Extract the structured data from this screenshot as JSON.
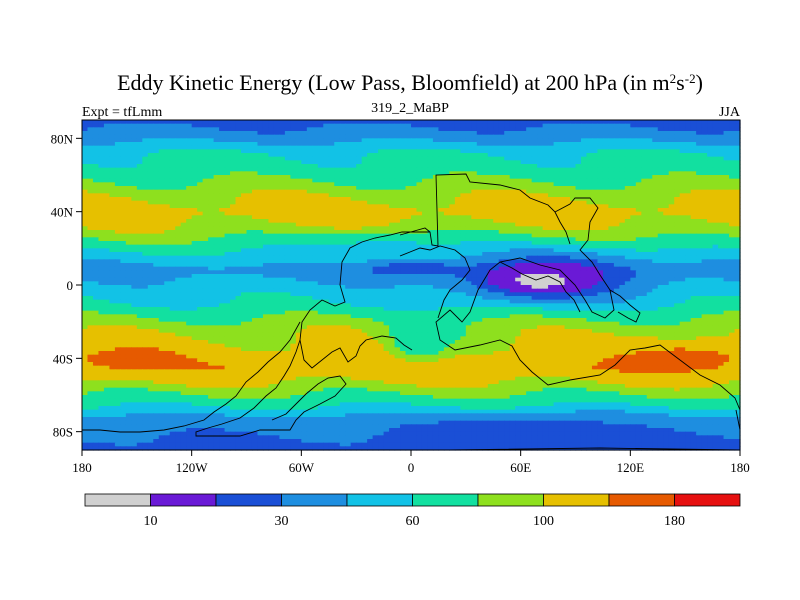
{
  "chart_data": {
    "type": "heatmap",
    "title_main": "Eddy Kinetic Energy (Low Pass, Bloomfield) at 200 hPa (in m",
    "title_sup1": "2",
    "title_mid": "s",
    "title_sup2": "-2",
    "title_end": ")",
    "left_subtitle": "Expt = tfLmm",
    "center_subtitle": "319_2_MaBP",
    "right_subtitle": "JJA",
    "x_ticks": [
      "180",
      "120W",
      "60W",
      "0",
      "60E",
      "120E",
      "180"
    ],
    "y_ticks": [
      "80N",
      "40N",
      "0",
      "40S",
      "80S"
    ],
    "xlim": [
      -180,
      180
    ],
    "ylim": [
      -90,
      90
    ],
    "colorbar_labels": [
      "10",
      "30",
      "60",
      "100",
      "180"
    ],
    "levels": [
      5,
      10,
      20,
      30,
      45,
      60,
      80,
      100,
      140,
      180
    ],
    "colors": [
      "#d0d0d0",
      "#6a1ad6",
      "#1a4fd6",
      "#1e8ee0",
      "#12c2e6",
      "#12e0a0",
      "#8ee01e",
      "#e6c000",
      "#e65a00",
      "#e61010"
    ],
    "band_profile": [
      {
        "lat": 90,
        "value": 25
      },
      {
        "lat": 82,
        "value": 35
      },
      {
        "lat": 72,
        "value": 60
      },
      {
        "lat": 62,
        "value": 70
      },
      {
        "lat": 52,
        "value": 90
      },
      {
        "lat": 40,
        "value": 115
      },
      {
        "lat": 28,
        "value": 90
      },
      {
        "lat": 18,
        "value": 60
      },
      {
        "lat": 8,
        "value": 38
      },
      {
        "lat": 0,
        "value": 50
      },
      {
        "lat": -10,
        "value": 60
      },
      {
        "lat": -22,
        "value": 90
      },
      {
        "lat": -35,
        "value": 110
      },
      {
        "lat": -45,
        "value": 130
      },
      {
        "lat": -55,
        "value": 95
      },
      {
        "lat": -63,
        "value": 70
      },
      {
        "lat": -73,
        "value": 40
      },
      {
        "lat": -82,
        "value": 30
      },
      {
        "lat": -90,
        "value": 25
      }
    ],
    "anomalies": [
      {
        "lon": 75,
        "lat": 5,
        "rlon": 55,
        "rlat": 14,
        "value": 15
      },
      {
        "lon": 70,
        "lat": 2,
        "rlon": 28,
        "rlat": 8,
        "value": 8
      },
      {
        "lon": 0,
        "lat": 10,
        "rlon": 28,
        "rlat": 5,
        "value": 15
      },
      {
        "lon": 60,
        "lat": -78,
        "rlon": 50,
        "rlat": 7,
        "value": 22
      },
      {
        "lon": -155,
        "lat": -40,
        "rlon": 30,
        "rlat": 7,
        "value": 160
      },
      {
        "lon": 150,
        "lat": -40,
        "rlon": 35,
        "rlat": 8,
        "value": 160
      },
      {
        "lon": -15,
        "lat": 20,
        "rlon": 55,
        "rlat": 8,
        "value": 55
      },
      {
        "lon": 5,
        "lat": -30,
        "rlon": 20,
        "rlat": 14,
        "value": 60
      }
    ]
  }
}
